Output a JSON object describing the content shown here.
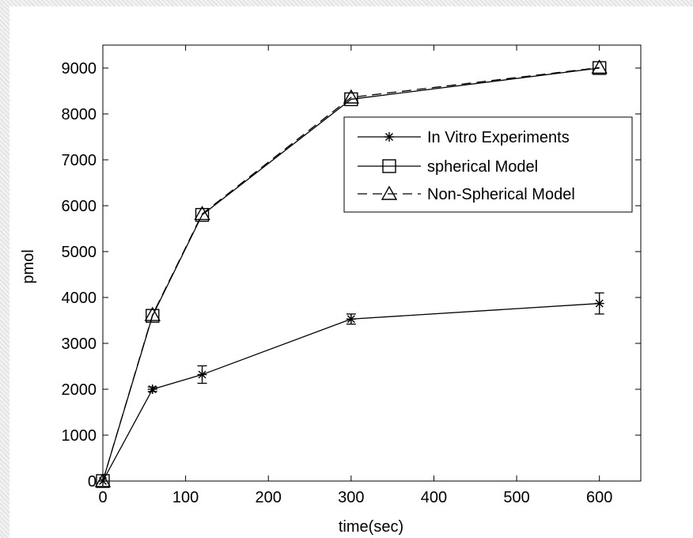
{
  "colors": {
    "figure_background": "#ffffff",
    "series_line": "#000000",
    "outer_margin": "#ececec"
  },
  "chart_data": {
    "type": "line",
    "title": "",
    "xlabel": "time(sec)",
    "ylabel": "pmol",
    "xlim": [
      0,
      650
    ],
    "ylim": [
      0,
      9500
    ],
    "xticks": [
      0,
      100,
      200,
      300,
      400,
      500,
      600
    ],
    "yticks": [
      0,
      1000,
      2000,
      3000,
      4000,
      5000,
      6000,
      7000,
      8000,
      9000
    ],
    "grid": false,
    "legend": {
      "position": "top-right"
    },
    "series": [
      {
        "name": "In Vitro Experiments",
        "marker": "asterisk",
        "line_style": "solid",
        "x": [
          0,
          60,
          120,
          300,
          600
        ],
        "y": [
          0,
          2000,
          2320,
          3530,
          3870
        ],
        "error": [
          0,
          50,
          190,
          110,
          230
        ]
      },
      {
        "name": "spherical Model",
        "marker": "square",
        "line_style": "solid",
        "x": [
          0,
          60,
          120,
          300,
          600
        ],
        "y": [
          0,
          3600,
          5800,
          8320,
          9000
        ]
      },
      {
        "name": "Non-Spherical Model",
        "marker": "triangle",
        "line_style": "dashed",
        "x": [
          0,
          60,
          120,
          300,
          600
        ],
        "y": [
          0,
          3620,
          5820,
          8360,
          9010
        ]
      }
    ]
  }
}
